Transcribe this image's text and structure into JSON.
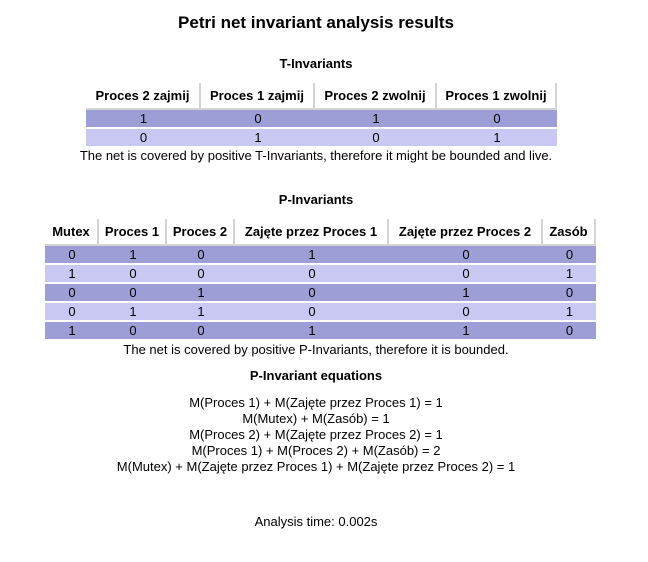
{
  "title": "Petri net invariant analysis results",
  "t_invariants": {
    "heading": "T-Invariants",
    "columns": [
      "Proces 2 zajmij",
      "Proces 1 zajmij",
      "Proces 2 zwolnij",
      "Proces 1 zwolnij"
    ],
    "rows": [
      [
        "1",
        "0",
        "1",
        "0"
      ],
      [
        "0",
        "1",
        "0",
        "1"
      ]
    ],
    "note": "The net is covered by positive T-Invariants, therefore it might be bounded and live."
  },
  "p_invariants": {
    "heading": "P-Invariants",
    "columns": [
      "Mutex",
      "Proces 1",
      "Proces 2",
      "Zajęte przez Proces 1",
      "Zajęte przez Proces 2",
      "Zasób"
    ],
    "rows": [
      [
        "0",
        "1",
        "0",
        "1",
        "0",
        "0"
      ],
      [
        "1",
        "0",
        "0",
        "0",
        "0",
        "1"
      ],
      [
        "0",
        "0",
        "1",
        "0",
        "1",
        "0"
      ],
      [
        "0",
        "1",
        "1",
        "0",
        "0",
        "1"
      ],
      [
        "1",
        "0",
        "0",
        "1",
        "1",
        "0"
      ]
    ],
    "note": "The net is covered by positive P-Invariants, therefore it is bounded."
  },
  "equations": {
    "heading": "P-Invariant equations",
    "lines": [
      "M(Proces 1) + M(Zajęte przez Proces 1) = 1",
      "M(Mutex) + M(Zasób) = 1",
      "M(Proces 2) + M(Zajęte przez Proces 2) = 1",
      "M(Proces 1) + M(Proces 2) + M(Zasób) = 2",
      "M(Mutex) + M(Zajęte przez Proces 1) + M(Zajęte przez Proces 2) = 1"
    ]
  },
  "analysis_time": "Analysis time: 0.002s",
  "colors": {
    "row_odd": "#9e9ed6",
    "row_even": "#c8c8f2",
    "header_border": "#d4d4d4"
  }
}
